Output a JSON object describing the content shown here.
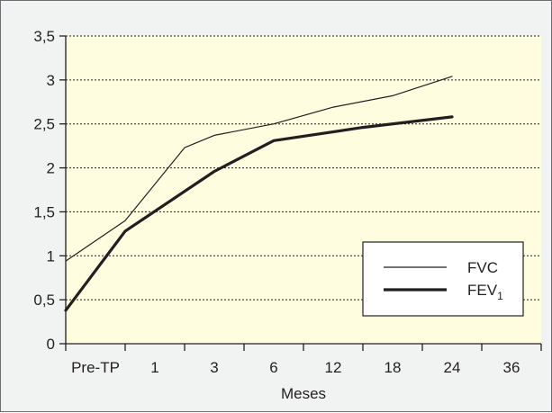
{
  "chart_data": {
    "type": "line",
    "title": "",
    "xlabel": "Meses",
    "ylabel": "",
    "categories": [
      "Pre-TP",
      "1",
      "3",
      "6",
      "12",
      "18",
      "24",
      "36"
    ],
    "yticks": [
      "0",
      "0,5",
      "1",
      "1,5",
      "2",
      "2,5",
      "3",
      "3,5"
    ],
    "ylim": [
      0,
      3.5
    ],
    "grid": "horizontal dotted",
    "legend_position": "right",
    "series": [
      {
        "name": "FVC",
        "weight": "thin",
        "points": [
          {
            "x": 0.0,
            "y": 0.94
          },
          {
            "x": 1.0,
            "y": 1.4
          },
          {
            "x": 2.0,
            "y": 2.23
          },
          {
            "x": 2.5,
            "y": 2.37
          },
          {
            "x": 3.5,
            "y": 2.5
          },
          {
            "x": 4.5,
            "y": 2.69
          },
          {
            "x": 5.5,
            "y": 2.82
          },
          {
            "x": 6.5,
            "y": 3.04
          }
        ]
      },
      {
        "name": "FEV",
        "name_subscript": "1",
        "weight": "bold",
        "points": [
          {
            "x": 0.0,
            "y": 0.38
          },
          {
            "x": 1.0,
            "y": 1.28
          },
          {
            "x": 2.5,
            "y": 1.96
          },
          {
            "x": 3.5,
            "y": 2.31
          },
          {
            "x": 5.0,
            "y": 2.46
          },
          {
            "x": 6.5,
            "y": 2.58
          }
        ]
      }
    ]
  }
}
